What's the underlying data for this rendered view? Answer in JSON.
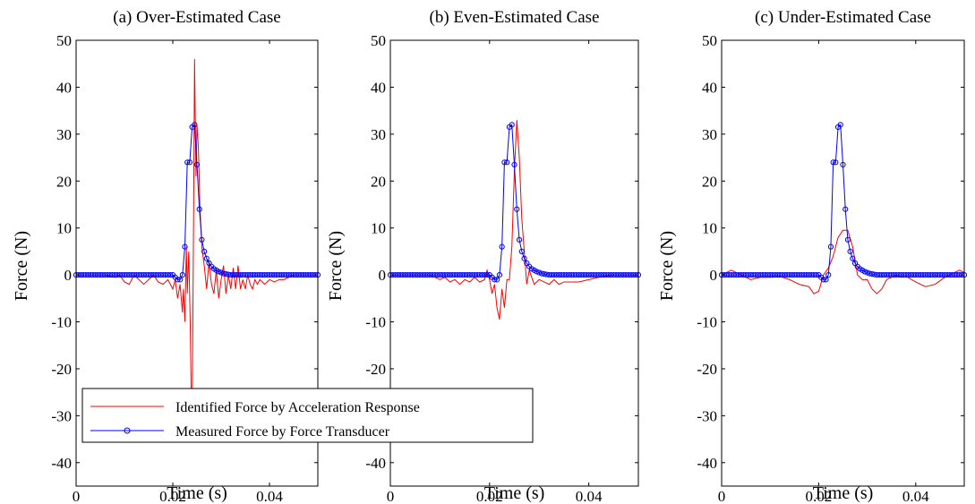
{
  "colors": {
    "identified": "#ff0000",
    "measured": "#0000ff",
    "axis": "#000000"
  },
  "legend": {
    "location": "bottom-left of panel (a)",
    "entries": [
      {
        "label": "Identified Force by Acceleration Response",
        "color": "#ff0000",
        "marker": "none"
      },
      {
        "label": "Measured Force by Force Transducer",
        "color": "#0000ff",
        "marker": "circle"
      }
    ]
  },
  "chart_data": [
    {
      "type": "line",
      "title": "(a) Over-Estimated Case",
      "xlabel": "Time (s)",
      "ylabel": "Force (N)",
      "xlim": [
        0,
        0.05
      ],
      "ylim": [
        -45,
        50
      ],
      "xticks": [
        0,
        0.02,
        0.04
      ],
      "xtick_labels": [
        "0",
        "0.02",
        "0.04"
      ],
      "yticks": [
        -40,
        -30,
        -20,
        -10,
        0,
        10,
        20,
        30,
        40,
        50
      ],
      "ytick_labels": [
        "-40",
        "-30",
        "-20",
        "-10",
        "0",
        "10",
        "20",
        "30",
        "40",
        "50"
      ],
      "grid": false,
      "series": [
        {
          "name": "Identified Force by Acceleration Response",
          "color": "#ff0000",
          "x": [
            0,
            0.006,
            0.008,
            0.009,
            0.01,
            0.011,
            0.012,
            0.013,
            0.014,
            0.015,
            0.016,
            0.017,
            0.018,
            0.019,
            0.02,
            0.0205,
            0.021,
            0.0215,
            0.022,
            0.0222,
            0.0225,
            0.0228,
            0.023,
            0.0233,
            0.0236,
            0.0238,
            0.024,
            0.0243,
            0.0245,
            0.0248,
            0.025,
            0.0253,
            0.0256,
            0.026,
            0.0265,
            0.027,
            0.0275,
            0.028,
            0.0285,
            0.029,
            0.0295,
            0.03,
            0.0305,
            0.031,
            0.0315,
            0.032,
            0.0325,
            0.033,
            0.0335,
            0.034,
            0.0345,
            0.035,
            0.0355,
            0.036,
            0.0365,
            0.037,
            0.0375,
            0.038,
            0.039,
            0.04,
            0.041,
            0.042,
            0.043,
            0.045,
            0.048,
            0.05
          ],
          "y": [
            0,
            0,
            -0.5,
            0,
            -1.5,
            -2,
            0,
            -1,
            -2,
            -1,
            0,
            -1.5,
            -2,
            -1,
            -3,
            -1,
            -5,
            -2,
            -8,
            -3,
            -10,
            6,
            -4,
            5,
            -10,
            -25,
            -31,
            12,
            46,
            21,
            32,
            27,
            15,
            6,
            2,
            -3,
            3,
            -2,
            -4,
            1,
            -5,
            -1,
            2,
            -4,
            0,
            -3,
            1.5,
            -3,
            2,
            -3,
            -1,
            -3,
            0,
            -2,
            -3,
            -1,
            -2,
            -1,
            -2,
            -1,
            -1.5,
            -1,
            -1,
            0,
            0,
            0
          ]
        },
        {
          "name": "Measured Force by Force Transducer",
          "color": "#0000ff",
          "marker": "circle",
          "x": [
            0,
            0.0005,
            0.001,
            0.0015,
            0.002,
            0.0025,
            0.003,
            0.0035,
            0.004,
            0.0045,
            0.005,
            0.0055,
            0.006,
            0.0065,
            0.007,
            0.0075,
            0.008,
            0.0085,
            0.009,
            0.0095,
            0.01,
            0.0105,
            0.011,
            0.0115,
            0.012,
            0.0125,
            0.013,
            0.0135,
            0.014,
            0.0145,
            0.015,
            0.0155,
            0.016,
            0.0165,
            0.017,
            0.0175,
            0.018,
            0.0185,
            0.019,
            0.0195,
            0.02,
            0.0205,
            0.021,
            0.0215,
            0.022,
            0.0225,
            0.023,
            0.0235,
            0.024,
            0.0245,
            0.025,
            0.0255,
            0.026,
            0.0265,
            0.027,
            0.0275,
            0.028,
            0.0285,
            0.029,
            0.0295,
            0.03,
            0.0305,
            0.031,
            0.0315,
            0.032,
            0.0325,
            0.033,
            0.0335,
            0.034,
            0.0345,
            0.035,
            0.0355,
            0.036,
            0.0365,
            0.037,
            0.0375,
            0.038,
            0.0385,
            0.039,
            0.0395,
            0.04,
            0.0405,
            0.041,
            0.0415,
            0.042,
            0.0425,
            0.043,
            0.0435,
            0.044,
            0.0445,
            0.045,
            0.0455,
            0.046,
            0.0465,
            0.047,
            0.0475,
            0.048,
            0.0485,
            0.049,
            0.0495,
            0.05
          ],
          "y": [
            0,
            0,
            0,
            0,
            0,
            0,
            0,
            0,
            0,
            0,
            0,
            0,
            0,
            0,
            0,
            0,
            0,
            0,
            0,
            0,
            0,
            0,
            0,
            0,
            0,
            0,
            0,
            0,
            0,
            0,
            0,
            0,
            0,
            0,
            0,
            0,
            0,
            0,
            0,
            0,
            0,
            -0.5,
            -1,
            -1,
            0,
            6,
            24,
            24,
            31.5,
            32,
            23.5,
            14,
            7.5,
            5,
            3.5,
            2.5,
            1.8,
            1.3,
            1,
            0.7,
            0.5,
            0.3,
            0.2,
            0.1,
            0,
            0,
            0,
            0,
            0,
            0,
            0,
            0,
            0,
            0,
            0,
            0,
            0,
            0,
            0,
            0,
            0,
            0,
            0,
            0,
            0,
            0,
            0,
            0,
            0,
            0,
            0,
            0,
            0,
            0,
            0,
            0,
            0,
            0,
            0,
            0,
            0
          ]
        }
      ]
    },
    {
      "type": "line",
      "title": "(b) Even-Estimated Case",
      "xlabel": "Time (s)",
      "ylabel": "Force (N)",
      "xlim": [
        0,
        0.05
      ],
      "ylim": [
        -45,
        50
      ],
      "xticks": [
        0,
        0.02,
        0.04
      ],
      "xtick_labels": [
        "0",
        "0.02",
        "0.04"
      ],
      "yticks": [
        -40,
        -30,
        -20,
        -10,
        0,
        10,
        20,
        30,
        40,
        50
      ],
      "ytick_labels": [
        "-40",
        "-30",
        "-20",
        "-10",
        "0",
        "10",
        "20",
        "30",
        "40",
        "50"
      ],
      "grid": false,
      "series": [
        {
          "name": "Identified Force by Acceleration Response",
          "color": "#ff0000",
          "x": [
            0,
            0.008,
            0.01,
            0.011,
            0.012,
            0.013,
            0.014,
            0.015,
            0.016,
            0.017,
            0.018,
            0.019,
            0.0195,
            0.02,
            0.0205,
            0.021,
            0.0215,
            0.022,
            0.0225,
            0.023,
            0.0235,
            0.024,
            0.0245,
            0.025,
            0.0255,
            0.026,
            0.0265,
            0.027,
            0.0275,
            0.028,
            0.029,
            0.03,
            0.031,
            0.032,
            0.033,
            0.034,
            0.035,
            0.036,
            0.037,
            0.038,
            0.04,
            0.042,
            0.045,
            0.05
          ],
          "y": [
            0,
            0,
            -1,
            -0.5,
            -1.5,
            -1,
            -2,
            -1,
            -1.5,
            -0.5,
            -1.5,
            -1,
            1,
            -1,
            -4,
            -2,
            -7,
            -9.5,
            -3,
            -7,
            -1,
            -1,
            6,
            22,
            33,
            25,
            12,
            5,
            -2,
            1,
            -2,
            -1,
            -1.5,
            -2,
            -1,
            -2,
            -1.5,
            -1.5,
            -1.5,
            -1.5,
            -1,
            -0.5,
            0,
            0
          ]
        },
        {
          "name": "Measured Force by Force Transducer",
          "color": "#0000ff",
          "marker": "circle",
          "x": [
            0,
            0.0005,
            0.001,
            0.0015,
            0.002,
            0.0025,
            0.003,
            0.0035,
            0.004,
            0.0045,
            0.005,
            0.0055,
            0.006,
            0.0065,
            0.007,
            0.0075,
            0.008,
            0.0085,
            0.009,
            0.0095,
            0.01,
            0.0105,
            0.011,
            0.0115,
            0.012,
            0.0125,
            0.013,
            0.0135,
            0.014,
            0.0145,
            0.015,
            0.0155,
            0.016,
            0.0165,
            0.017,
            0.0175,
            0.018,
            0.0185,
            0.019,
            0.0195,
            0.02,
            0.0205,
            0.021,
            0.0215,
            0.022,
            0.0225,
            0.023,
            0.0235,
            0.024,
            0.0245,
            0.025,
            0.0255,
            0.026,
            0.0265,
            0.027,
            0.0275,
            0.028,
            0.0285,
            0.029,
            0.0295,
            0.03,
            0.0305,
            0.031,
            0.0315,
            0.032,
            0.0325,
            0.033,
            0.0335,
            0.034,
            0.0345,
            0.035,
            0.0355,
            0.036,
            0.0365,
            0.037,
            0.0375,
            0.038,
            0.0385,
            0.039,
            0.0395,
            0.04,
            0.0405,
            0.041,
            0.0415,
            0.042,
            0.0425,
            0.043,
            0.0435,
            0.044,
            0.0445,
            0.045,
            0.0455,
            0.046,
            0.0465,
            0.047,
            0.0475,
            0.048,
            0.0485,
            0.049,
            0.0495,
            0.05
          ],
          "y": [
            0,
            0,
            0,
            0,
            0,
            0,
            0,
            0,
            0,
            0,
            0,
            0,
            0,
            0,
            0,
            0,
            0,
            0,
            0,
            0,
            0,
            0,
            0,
            0,
            0,
            0,
            0,
            0,
            0,
            0,
            0,
            0,
            0,
            0,
            0,
            0,
            0,
            0,
            0,
            0,
            0,
            -0.5,
            -1,
            -1,
            0,
            6,
            24,
            24,
            31.5,
            32,
            23.5,
            14,
            7.5,
            5,
            3.5,
            2.5,
            1.8,
            1.3,
            1,
            0.7,
            0.5,
            0.3,
            0.2,
            0.1,
            0,
            0,
            0,
            0,
            0,
            0,
            0,
            0,
            0,
            0,
            0,
            0,
            0,
            0,
            0,
            0,
            0,
            0,
            0,
            0,
            0,
            0,
            0,
            0,
            0,
            0,
            0,
            0,
            0,
            0,
            0,
            0,
            0,
            0,
            0,
            0,
            0
          ]
        }
      ]
    },
    {
      "type": "line",
      "title": "(c) Under-Estimated Case",
      "xlabel": "Time (s)",
      "ylabel": "Force (N)",
      "xlim": [
        0,
        0.05
      ],
      "ylim": [
        -45,
        50
      ],
      "xticks": [
        0,
        0.02,
        0.04
      ],
      "xtick_labels": [
        "0",
        "0.02",
        "0.04"
      ],
      "yticks": [
        -40,
        -30,
        -20,
        -10,
        0,
        10,
        20,
        30,
        40,
        50
      ],
      "ytick_labels": [
        "-40",
        "-30",
        "-20",
        "-10",
        "0",
        "10",
        "20",
        "30",
        "40",
        "50"
      ],
      "grid": false,
      "series": [
        {
          "name": "Identified Force by Acceleration Response",
          "color": "#ff0000",
          "x": [
            0,
            0.002,
            0.004,
            0.006,
            0.008,
            0.01,
            0.012,
            0.014,
            0.016,
            0.018,
            0.019,
            0.02,
            0.021,
            0.022,
            0.023,
            0.024,
            0.025,
            0.026,
            0.027,
            0.028,
            0.029,
            0.03,
            0.031,
            0.032,
            0.033,
            0.034,
            0.035,
            0.036,
            0.037,
            0.038,
            0.04,
            0.042,
            0.044,
            0.046,
            0.048,
            0.049,
            0.05
          ],
          "y": [
            0,
            1,
            0,
            -1,
            -0.5,
            -0.5,
            -0.3,
            -1,
            -2,
            -2.5,
            -4,
            -3.5,
            0,
            1.5,
            4,
            8,
            9.5,
            9.5,
            6,
            0,
            -1,
            -1,
            -3,
            -4,
            -3,
            -1,
            -0.5,
            0,
            -0.5,
            -0.3,
            -1.5,
            -2.5,
            -2,
            -0.5,
            0.5,
            1,
            0.5
          ]
        },
        {
          "name": "Measured Force by Force Transducer",
          "color": "#0000ff",
          "marker": "circle",
          "x": [
            0,
            0.0005,
            0.001,
            0.0015,
            0.002,
            0.0025,
            0.003,
            0.0035,
            0.004,
            0.0045,
            0.005,
            0.0055,
            0.006,
            0.0065,
            0.007,
            0.0075,
            0.008,
            0.0085,
            0.009,
            0.0095,
            0.01,
            0.0105,
            0.011,
            0.0115,
            0.012,
            0.0125,
            0.013,
            0.0135,
            0.014,
            0.0145,
            0.015,
            0.0155,
            0.016,
            0.0165,
            0.017,
            0.0175,
            0.018,
            0.0185,
            0.019,
            0.0195,
            0.02,
            0.0205,
            0.021,
            0.0215,
            0.022,
            0.0225,
            0.023,
            0.0235,
            0.024,
            0.0245,
            0.025,
            0.0255,
            0.026,
            0.0265,
            0.027,
            0.0275,
            0.028,
            0.0285,
            0.029,
            0.0295,
            0.03,
            0.0305,
            0.031,
            0.0315,
            0.032,
            0.0325,
            0.033,
            0.0335,
            0.034,
            0.0345,
            0.035,
            0.0355,
            0.036,
            0.0365,
            0.037,
            0.0375,
            0.038,
            0.0385,
            0.039,
            0.0395,
            0.04,
            0.0405,
            0.041,
            0.0415,
            0.042,
            0.0425,
            0.043,
            0.0435,
            0.044,
            0.0445,
            0.045,
            0.0455,
            0.046,
            0.0465,
            0.047,
            0.0475,
            0.048,
            0.0485,
            0.049,
            0.0495,
            0.05
          ],
          "y": [
            0,
            0,
            0,
            0,
            0,
            0,
            0,
            0,
            0,
            0,
            0,
            0,
            0,
            0,
            0,
            0,
            0,
            0,
            0,
            0,
            0,
            0,
            0,
            0,
            0,
            0,
            0,
            0,
            0,
            0,
            0,
            0,
            0,
            0,
            0,
            0,
            0,
            0,
            0,
            0,
            0,
            -0.5,
            -1,
            -1,
            0,
            6,
            24,
            24,
            31.5,
            32,
            23.5,
            14,
            7.5,
            5,
            3.5,
            2.5,
            1.8,
            1.3,
            1,
            0.7,
            0.5,
            0.3,
            0.2,
            0.1,
            0,
            0,
            0,
            0,
            0,
            0,
            0,
            0,
            0,
            0,
            0,
            0,
            0,
            0,
            0,
            0,
            0,
            0,
            0,
            0,
            0,
            0,
            0,
            0,
            0,
            0,
            0,
            0,
            0,
            0,
            0,
            0,
            0,
            0,
            0,
            0,
            0
          ]
        }
      ]
    }
  ]
}
